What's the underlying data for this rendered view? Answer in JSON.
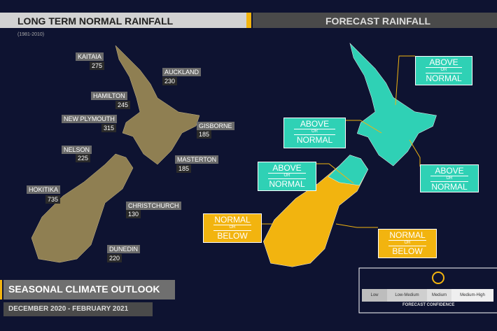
{
  "header": {
    "left_title": "LONG TERM NORMAL RAINFALL",
    "period": "(1981-2010)",
    "right_title": "FORECAST RAINFALL"
  },
  "normal_rainfall": [
    {
      "name": "KAITAIA",
      "value": 275
    },
    {
      "name": "AUCKLAND",
      "value": 230
    },
    {
      "name": "HAMILTON",
      "value": 245
    },
    {
      "name": "NEW PLYMOUTH",
      "value": 315
    },
    {
      "name": "GISBORNE",
      "value": 185
    },
    {
      "name": "NELSON",
      "value": 225
    },
    {
      "name": "MASTERTON",
      "value": 185
    },
    {
      "name": "HOKITIKA",
      "value": 735
    },
    {
      "name": "CHRISTCHURCH",
      "value": 130
    },
    {
      "name": "DUNEDIN",
      "value": 220
    }
  ],
  "forecast": [
    {
      "top": "ABOVE",
      "mid": "OR",
      "bottom": "NORMAL"
    },
    {
      "top": "ABOVE",
      "mid": "OR",
      "bottom": "NORMAL"
    },
    {
      "top": "ABOVE",
      "mid": "OR",
      "bottom": "NORMAL"
    },
    {
      "top": "ABOVE",
      "mid": "OR",
      "bottom": "NORMAL"
    },
    {
      "top": "NORMAL",
      "mid": "OR",
      "bottom": "BELOW"
    },
    {
      "top": "NORMAL",
      "mid": "OR",
      "bottom": "BELOW"
    }
  ],
  "confidence": {
    "levels": [
      "Low",
      "Low-Medium",
      "Medium",
      "Medium-High"
    ],
    "label": "FORECAST CONFIDENCE"
  },
  "footer": {
    "title": "SEASONAL CLIMATE OUTLOOK",
    "dates": "DECEMBER 2020 - FEBRUARY 2021"
  }
}
